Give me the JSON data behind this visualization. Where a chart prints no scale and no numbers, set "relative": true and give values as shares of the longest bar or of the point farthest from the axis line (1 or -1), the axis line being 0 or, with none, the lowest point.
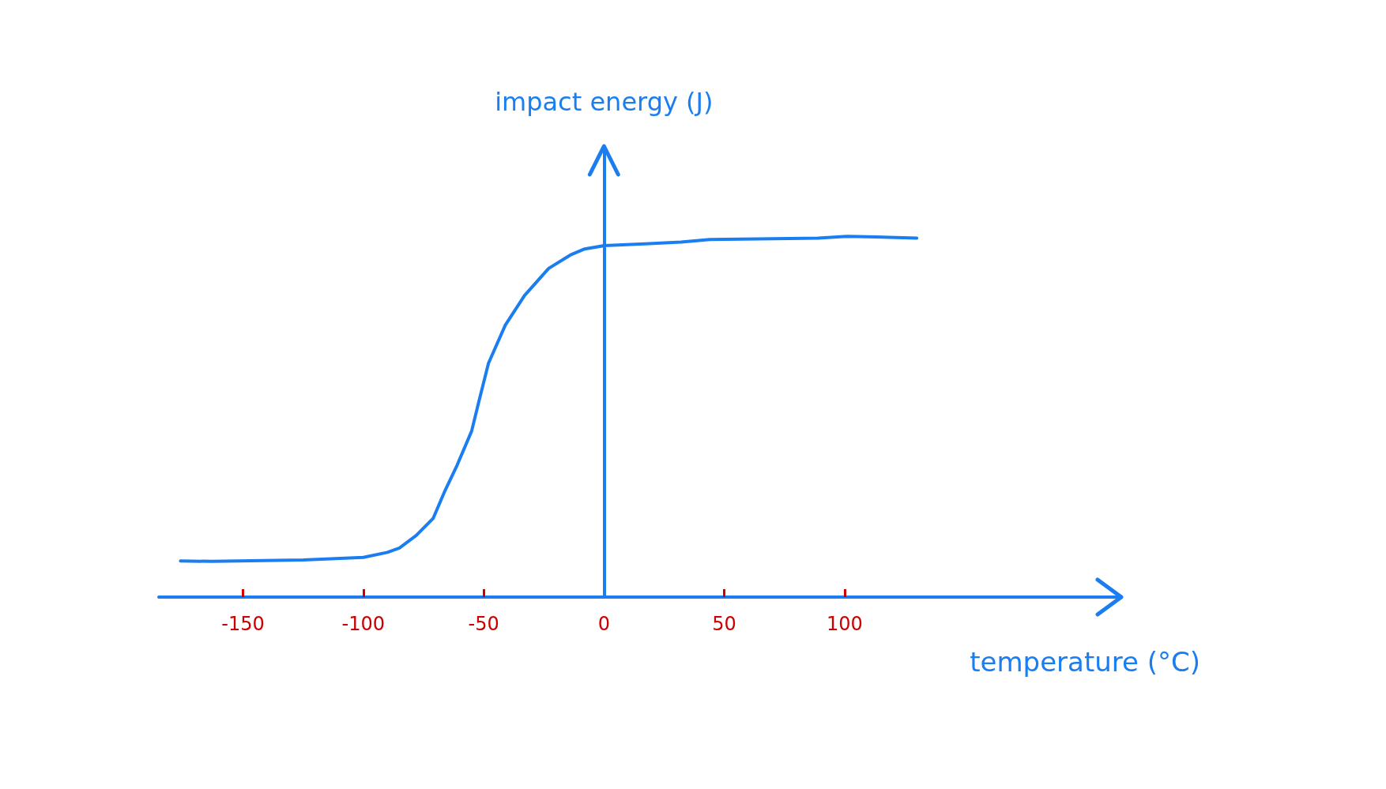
{
  "chart_data": {
    "type": "line",
    "xlabel": "temperature (°C)",
    "ylabel": "impact energy (J)",
    "relative": true,
    "xlim": [
      -185,
      215
    ],
    "xticks": [
      -150,
      -100,
      -50,
      0,
      50,
      100
    ],
    "x": [
      -176,
      -163,
      -125,
      -100,
      -90,
      -85,
      -78,
      -71,
      -66,
      -61,
      -55,
      -52,
      -48,
      -41,
      -33,
      -23,
      -14,
      -8,
      0,
      17,
      32,
      44,
      64,
      89,
      101,
      113,
      130
    ],
    "series": [
      {
        "color": "#1a7ef0",
        "values": [
          0.1,
          0.099,
          0.103,
          0.11,
          0.124,
          0.136,
          0.171,
          0.218,
          0.296,
          0.366,
          0.46,
          0.542,
          0.648,
          0.754,
          0.836,
          0.911,
          0.948,
          0.965,
          0.974,
          0.979,
          0.984,
          0.991,
          0.993,
          0.995,
          1.0,
          0.998,
          0.995
        ]
      }
    ],
    "ref_lines": [
      {
        "axis": "x",
        "value": 0,
        "color": "#1a7ef0"
      }
    ],
    "grid": false,
    "marker": "none",
    "line_style": "solid"
  }
}
